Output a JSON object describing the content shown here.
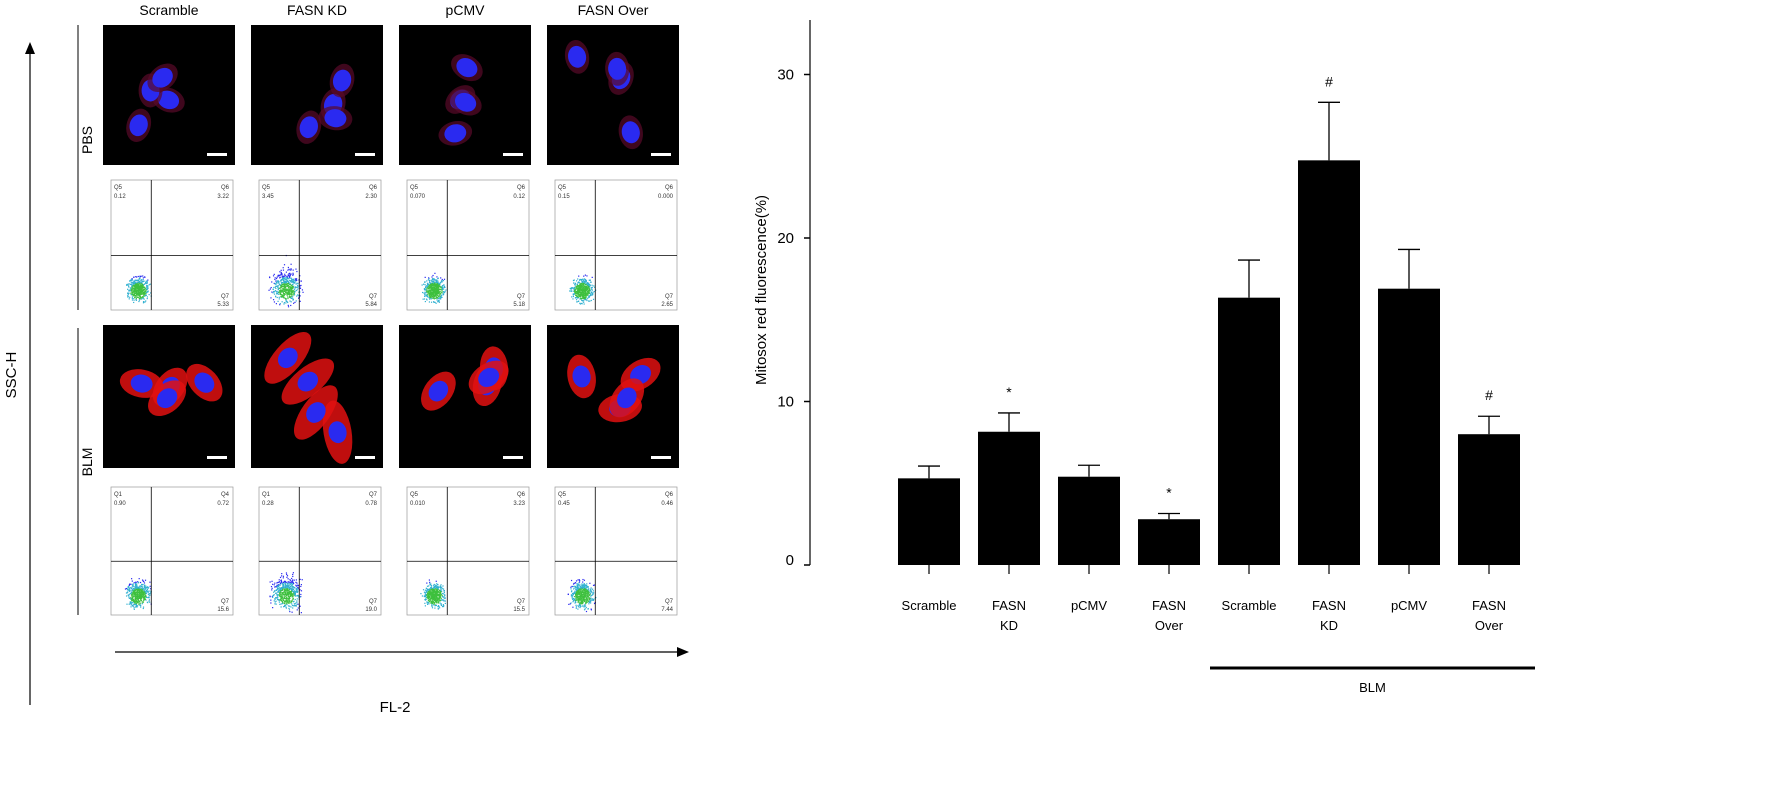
{
  "figure": {
    "column_headers": [
      "Scramble",
      "FASN KD",
      "pCMV",
      "FASN Over"
    ],
    "row_labels": [
      "PBS",
      "BLM"
    ],
    "y_axis_label": "SSC-H",
    "x_axis_label": "FL-2",
    "flow_quadrants": {
      "PBS": [
        {
          "ul_name": "Q5",
          "ul": "0.12",
          "ur_name": "Q6",
          "ur": "3.22",
          "lr_name": "Q7",
          "lr": "5.33"
        },
        {
          "ul_name": "Q5",
          "ul": "3.45",
          "ur_name": "Q6",
          "ur": "2.30",
          "lr_name": "Q7",
          "lr": "5.84"
        },
        {
          "ul_name": "Q5",
          "ul": "0.070",
          "ur_name": "Q6",
          "ur": "0.12",
          "lr_name": "Q7",
          "lr": "5.18"
        },
        {
          "ul_name": "Q5",
          "ul": "0.15",
          "ur_name": "Q6",
          "ur": "0.000",
          "lr_name": "Q7",
          "lr": "2.65"
        }
      ],
      "BLM": [
        {
          "ul_name": "Q1",
          "ul": "0.90",
          "ur_name": "Q4",
          "ur": "0.72",
          "lr_name": "Q7",
          "lr": "15.6"
        },
        {
          "ul_name": "Q1",
          "ul": "0.28",
          "ur_name": "Q7",
          "ur": "0.78",
          "lr_name": "Q7",
          "lr": "19.0"
        },
        {
          "ul_name": "Q5",
          "ul": "0.010",
          "ur_name": "Q6",
          "ur": "3.23",
          "lr_name": "Q7",
          "lr": "15.5"
        },
        {
          "ul_name": "Q5",
          "ul": "0.45",
          "ur_name": "Q6",
          "ur": "0.46",
          "lr_name": "Q7",
          "lr": "7.44"
        }
      ]
    },
    "colors": {
      "nucleus": "#2a2af0",
      "mitosox": "#e01010",
      "bar": "#000000"
    }
  },
  "chart_data": {
    "type": "bar",
    "categories": [
      [
        "Scramble"
      ],
      [
        "FASN",
        "KD"
      ],
      [
        "pCMV"
      ],
      [
        "FASN",
        "Over"
      ],
      [
        "Scramble"
      ],
      [
        "FASN",
        "KD"
      ],
      [
        "pCMV"
      ],
      [
        "FASN",
        "Over"
      ]
    ],
    "values": [
      5.3,
      8.15,
      5.4,
      2.8,
      16.35,
      24.75,
      16.9,
      8.0
    ],
    "errors": [
      0.75,
      1.15,
      0.7,
      0.35,
      2.3,
      3.55,
      2.4,
      1.1
    ],
    "annotations": [
      "",
      "*",
      "",
      "*",
      "",
      "#",
      "",
      "#"
    ],
    "ylabel": "Mitosox red fluorescence(%)",
    "xlabel": "",
    "ylim": [
      0,
      33
    ],
    "yticks": [
      0,
      10,
      20,
      30
    ],
    "group_label": "BLM",
    "group_span": [
      4,
      7
    ],
    "grid": false
  }
}
